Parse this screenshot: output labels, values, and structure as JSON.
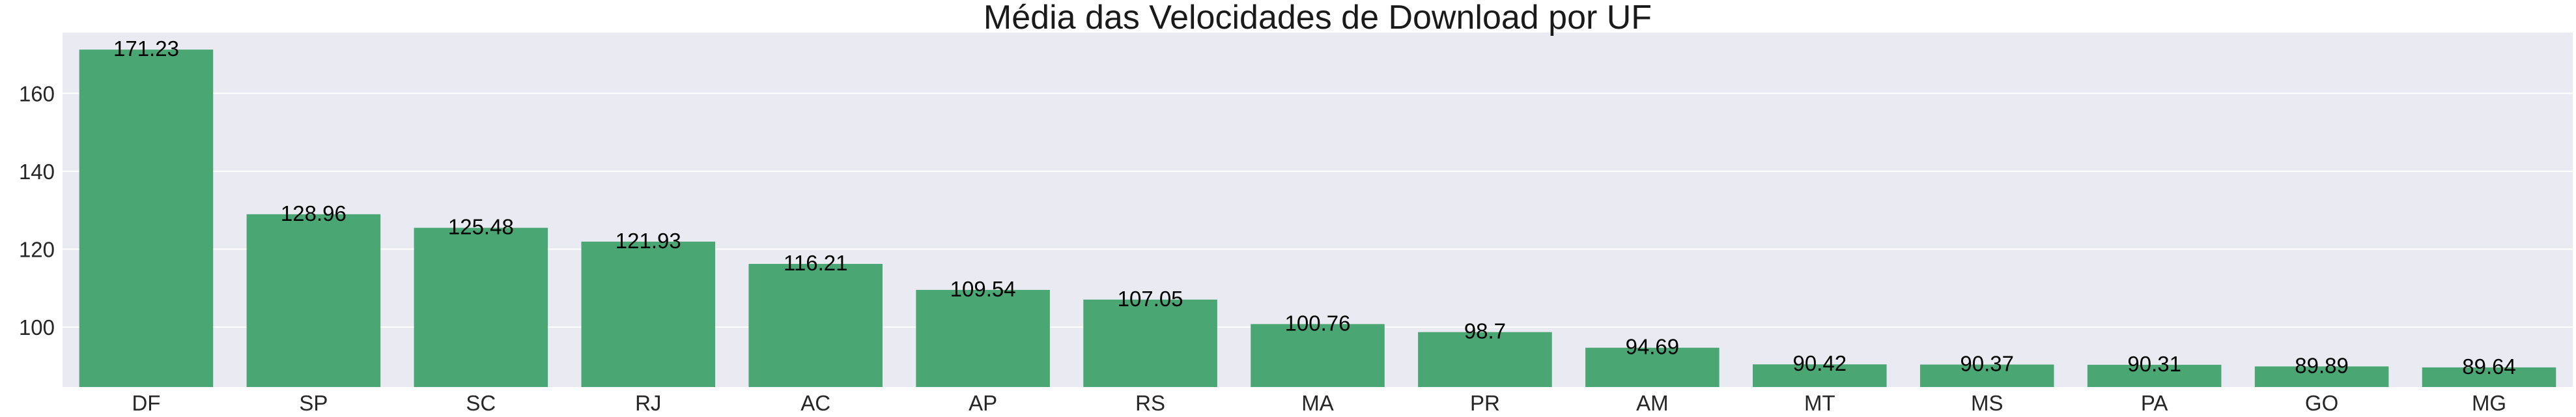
{
  "chart_data": {
    "type": "bar",
    "title": "Média das Velocidades de Download por UF",
    "xlabel": "",
    "ylabel": "",
    "categories": [
      "DF",
      "SP",
      "SC",
      "RJ",
      "AC",
      "AP",
      "RS",
      "MA",
      "PR",
      "AM",
      "MT",
      "MS",
      "PA",
      "GO",
      "MG"
    ],
    "values": [
      171.23,
      128.96,
      125.48,
      121.93,
      116.21,
      109.54,
      107.05,
      100.76,
      98.7,
      94.69,
      90.42,
      90.37,
      90.31,
      89.89,
      89.64
    ],
    "data_labels": [
      "171.23",
      "128.96",
      "125.48",
      "121.93",
      "116.21",
      "109.54",
      "107.05",
      "100.76",
      "98.7",
      "94.69",
      "90.42",
      "90.37",
      "90.31",
      "89.89",
      "89.64"
    ],
    "ylim": [
      84.6,
      175.6
    ],
    "yticks": [
      100,
      120,
      140,
      160
    ],
    "grid": true,
    "colors": {
      "bar": "#4aa673",
      "background": "#eaeaf2",
      "grid": "#ffffff",
      "text": "#262626"
    }
  }
}
